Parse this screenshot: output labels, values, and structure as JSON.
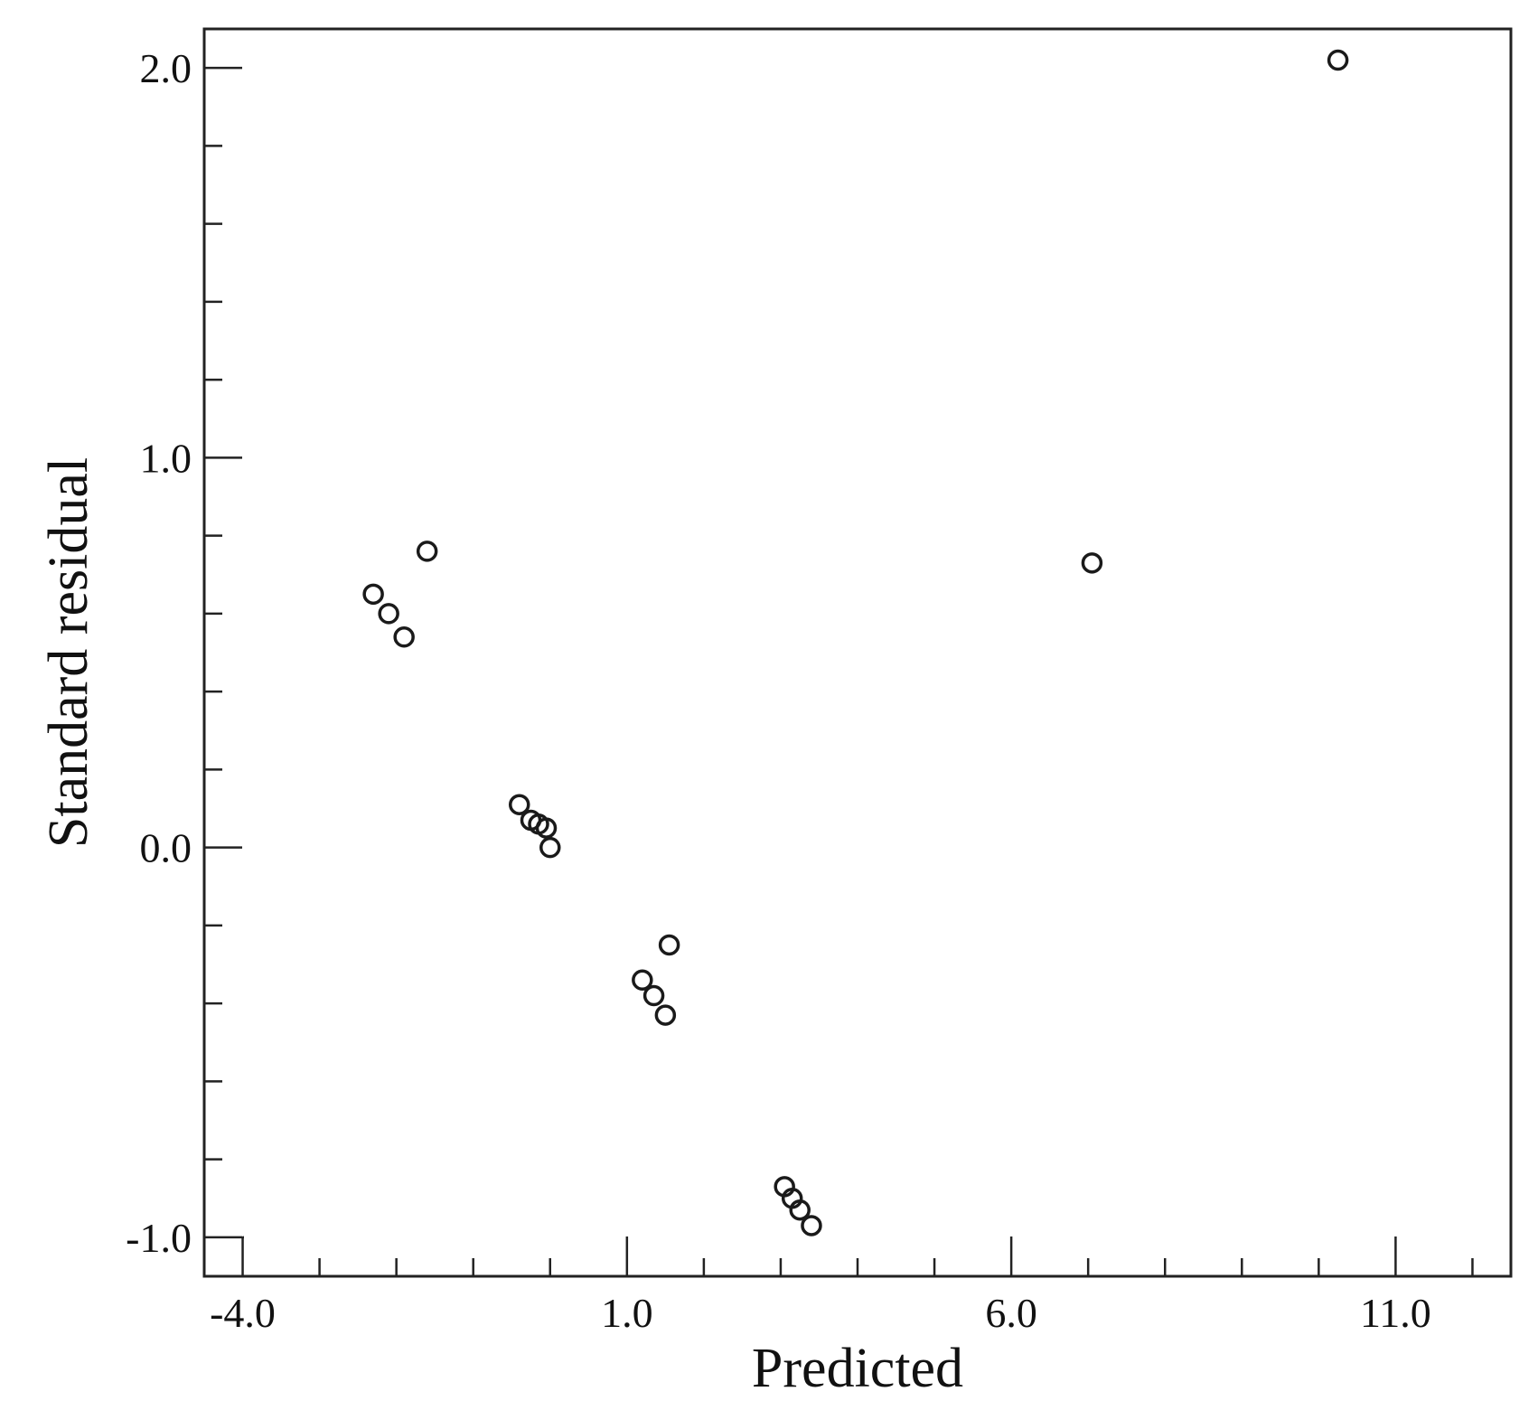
{
  "chart_data": {
    "type": "scatter",
    "xlabel": "Predicted",
    "ylabel": "Standard residual",
    "xlim": [
      -4.5,
      12.5
    ],
    "ylim": [
      -1.1,
      2.1
    ],
    "x_ticks": [
      -4.0,
      1.0,
      6.0,
      11.0
    ],
    "x_tick_labels": [
      "-4.0",
      "1.0",
      "6.0",
      "11.0"
    ],
    "x_minor_step": 1.0,
    "y_ticks": [
      -1.0,
      0.0,
      1.0,
      2.0
    ],
    "y_tick_labels": [
      "-1.0",
      "0.0",
      "1.0",
      "2.0"
    ],
    "y_minor_step": 0.2,
    "grid": false,
    "marker": "open-circle",
    "points": [
      {
        "x": -2.3,
        "y": 0.65
      },
      {
        "x": -2.1,
        "y": 0.6
      },
      {
        "x": -1.9,
        "y": 0.54
      },
      {
        "x": -1.6,
        "y": 0.76
      },
      {
        "x": -0.4,
        "y": 0.11
      },
      {
        "x": -0.25,
        "y": 0.07
      },
      {
        "x": -0.15,
        "y": 0.06
      },
      {
        "x": -0.05,
        "y": 0.05
      },
      {
        "x": 0.0,
        "y": 0.0
      },
      {
        "x": 1.2,
        "y": -0.34
      },
      {
        "x": 1.35,
        "y": -0.38
      },
      {
        "x": 1.5,
        "y": -0.43
      },
      {
        "x": 1.55,
        "y": -0.25
      },
      {
        "x": 3.05,
        "y": -0.87
      },
      {
        "x": 3.15,
        "y": -0.9
      },
      {
        "x": 3.25,
        "y": -0.93
      },
      {
        "x": 3.4,
        "y": -0.97
      },
      {
        "x": 7.05,
        "y": 0.73
      },
      {
        "x": 10.25,
        "y": 2.02
      }
    ]
  }
}
